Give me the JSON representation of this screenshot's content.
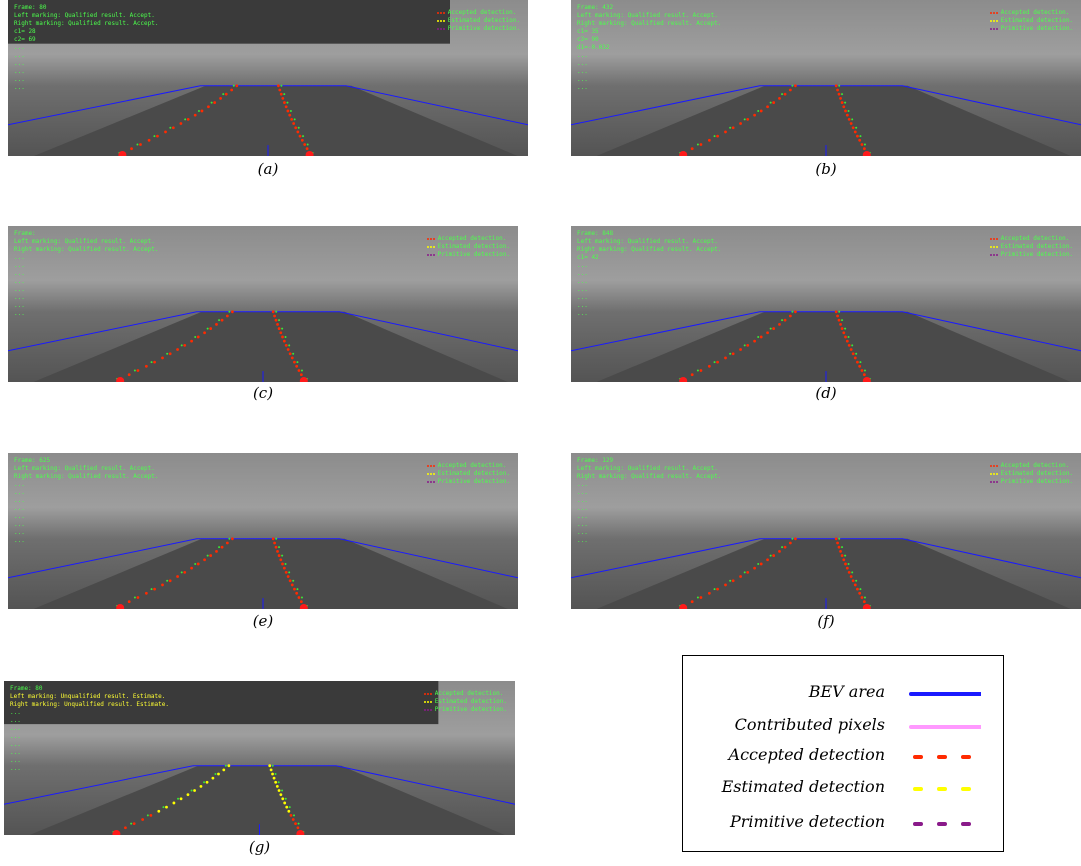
{
  "panels": [
    {
      "caption": "(a)",
      "overlay": [
        "Frame: 80",
        "Left marking: Qualified result. Accept.",
        "Right marking: Qualified result. Accept.",
        "",
        "c1= 28",
        "c2= 69",
        "...",
        "...",
        "...",
        "...",
        "...",
        "..."
      ],
      "legend": [
        "Accepted detection.",
        "Estimated detection.",
        "Primitive detection."
      ]
    },
    {
      "caption": "(b)",
      "overlay": [
        "Frame: 432",
        "Left marking: Qualified result. Accept.",
        "Right marking: Qualified result. Accept.",
        "",
        "c1= 35",
        "c2= 90",
        "d1=-0.032",
        "...",
        "...",
        "...",
        "...",
        "..."
      ],
      "legend": [
        "Accepted detection.",
        "Estimated detection.",
        "Primitive detection."
      ]
    },
    {
      "caption": "(c)",
      "overlay": [
        "Frame:",
        "Left marking: Qualified result. Accept.",
        "Right marking: Qualified result. Accept.",
        "",
        "...",
        "...",
        "...",
        "...",
        "...",
        "...",
        "...",
        "..."
      ],
      "legend": [
        "Accepted detection.",
        "Estimated detection.",
        "Primitive detection."
      ]
    },
    {
      "caption": "(d)",
      "overlay": [
        "Frame: 848",
        "Left marking: Qualified result. Accept.",
        "Right marking: Qualified result. Accept.",
        "",
        "c1= 42",
        "...",
        "...",
        "...",
        "...",
        "...",
        "...",
        "..."
      ],
      "legend": [
        "Accepted detection.",
        "Estimated detection.",
        "Primitive detection."
      ]
    },
    {
      "caption": "(e)",
      "overlay": [
        "Frame: 625",
        "Left marking: Qualified result. Accept.",
        "Right marking: Qualified result. Accept.",
        "",
        "...",
        "...",
        "...",
        "...",
        "...",
        "...",
        "...",
        "..."
      ],
      "legend": [
        "Accepted detection.",
        "Estimated detection.",
        "Primitive detection."
      ]
    },
    {
      "caption": "(f)",
      "overlay": [
        "Frame: 129",
        "Left marking: Qualified result. Accept.",
        "Right marking: Qualified result. Accept.",
        "",
        "...",
        "...",
        "...",
        "...",
        "...",
        "...",
        "...",
        "..."
      ],
      "legend": [
        "Accepted detection.",
        "Estimated detection.",
        "Primitive detection."
      ]
    },
    {
      "caption": "(g)",
      "overlay": [
        "Frame: 80",
        "Left marking: Unqualified result. Estimate.",
        "Right marking: Unqualified result. Estimate.",
        "",
        "...",
        "...",
        "...",
        "...",
        "...",
        "...",
        "...",
        "..."
      ],
      "legend": [
        "Accepted detection.",
        "Estimated detection.",
        "Primitive detection."
      ]
    }
  ],
  "legend": {
    "items": [
      {
        "label": "BEV area",
        "style": "line",
        "color": "#1a1aff"
      },
      {
        "label": "Contributed  pixels",
        "style": "line",
        "color": "#ff99ff"
      },
      {
        "label": "Accepted detection",
        "style": "dashed",
        "color": "#ff2a00"
      },
      {
        "label": "Estimated detection",
        "style": "dashed",
        "color": "#ffff00"
      },
      {
        "label": "Primitive detection",
        "style": "dashed",
        "color": "#8a1a8a"
      }
    ]
  },
  "colors": {
    "bev": "#1a1aff",
    "accepted": "#ff2a00",
    "estimated": "#ffff00",
    "primitive": "#8a1a8a",
    "contributed": "#ff99ff",
    "overlay_text": "#4cff4c"
  }
}
